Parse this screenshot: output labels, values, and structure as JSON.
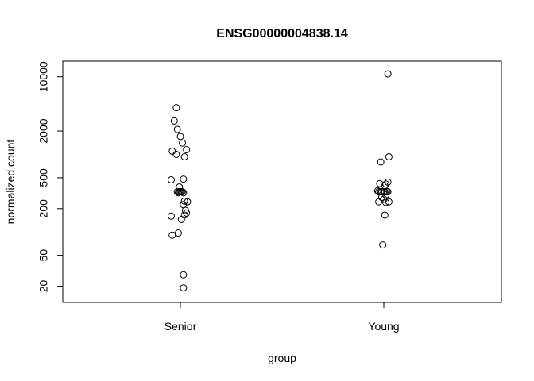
{
  "chart_data": {
    "type": "scatter",
    "title": "ENSG00000004838.14",
    "xlabel": "group",
    "ylabel": "normalized count",
    "y_scale": "log",
    "categories": [
      "Senior",
      "Young"
    ],
    "y_ticks": [
      20,
      50,
      200,
      500,
      2000,
      10000
    ],
    "y_tick_labels": [
      "20",
      "50",
      "200",
      "500",
      "2000",
      "10000"
    ],
    "ylim": [
      16,
      12000
    ],
    "grid": false,
    "series": [
      {
        "category": "Senior",
        "points": [
          {
            "jitter": -0.04,
            "y": 4000
          },
          {
            "jitter": -0.06,
            "y": 2700
          },
          {
            "jitter": -0.03,
            "y": 2100
          },
          {
            "jitter": 0.0,
            "y": 1700
          },
          {
            "jitter": 0.02,
            "y": 1400
          },
          {
            "jitter": -0.08,
            "y": 1100
          },
          {
            "jitter": 0.06,
            "y": 1150
          },
          {
            "jitter": -0.04,
            "y": 1000
          },
          {
            "jitter": 0.04,
            "y": 930
          },
          {
            "jitter": -0.09,
            "y": 470
          },
          {
            "jitter": 0.03,
            "y": 480
          },
          {
            "jitter": -0.01,
            "y": 380
          },
          {
            "jitter": -0.03,
            "y": 330
          },
          {
            "jitter": -0.01,
            "y": 330
          },
          {
            "jitter": 0.0,
            "y": 330
          },
          {
            "jitter": 0.01,
            "y": 330
          },
          {
            "jitter": 0.02,
            "y": 330
          },
          {
            "jitter": -0.02,
            "y": 320
          },
          {
            "jitter": 0.03,
            "y": 320
          },
          {
            "jitter": 0.04,
            "y": 250
          },
          {
            "jitter": 0.07,
            "y": 245
          },
          {
            "jitter": 0.03,
            "y": 225
          },
          {
            "jitter": 0.05,
            "y": 190
          },
          {
            "jitter": 0.06,
            "y": 175
          },
          {
            "jitter": 0.04,
            "y": 165
          },
          {
            "jitter": -0.09,
            "y": 160
          },
          {
            "jitter": 0.01,
            "y": 145
          },
          {
            "jitter": -0.02,
            "y": 97
          },
          {
            "jitter": -0.08,
            "y": 91
          },
          {
            "jitter": 0.03,
            "y": 28
          },
          {
            "jitter": 0.03,
            "y": 19
          }
        ]
      },
      {
        "category": "Young",
        "points": [
          {
            "jitter": 0.04,
            "y": 10900
          },
          {
            "jitter": 0.05,
            "y": 930
          },
          {
            "jitter": -0.03,
            "y": 800
          },
          {
            "jitter": 0.04,
            "y": 440
          },
          {
            "jitter": 0.02,
            "y": 415
          },
          {
            "jitter": -0.04,
            "y": 420
          },
          {
            "jitter": 0.01,
            "y": 395
          },
          {
            "jitter": -0.06,
            "y": 340
          },
          {
            "jitter": -0.05,
            "y": 330
          },
          {
            "jitter": -0.03,
            "y": 330
          },
          {
            "jitter": -0.02,
            "y": 330
          },
          {
            "jitter": 0.0,
            "y": 330
          },
          {
            "jitter": 0.01,
            "y": 330
          },
          {
            "jitter": 0.03,
            "y": 330
          },
          {
            "jitter": 0.04,
            "y": 330
          },
          {
            "jitter": 0.02,
            "y": 300
          },
          {
            "jitter": -0.02,
            "y": 280
          },
          {
            "jitter": 0.0,
            "y": 265
          },
          {
            "jitter": -0.05,
            "y": 245
          },
          {
            "jitter": 0.02,
            "y": 240
          },
          {
            "jitter": 0.05,
            "y": 245
          },
          {
            "jitter": 0.01,
            "y": 165
          },
          {
            "jitter": -0.01,
            "y": 68
          }
        ]
      }
    ]
  }
}
